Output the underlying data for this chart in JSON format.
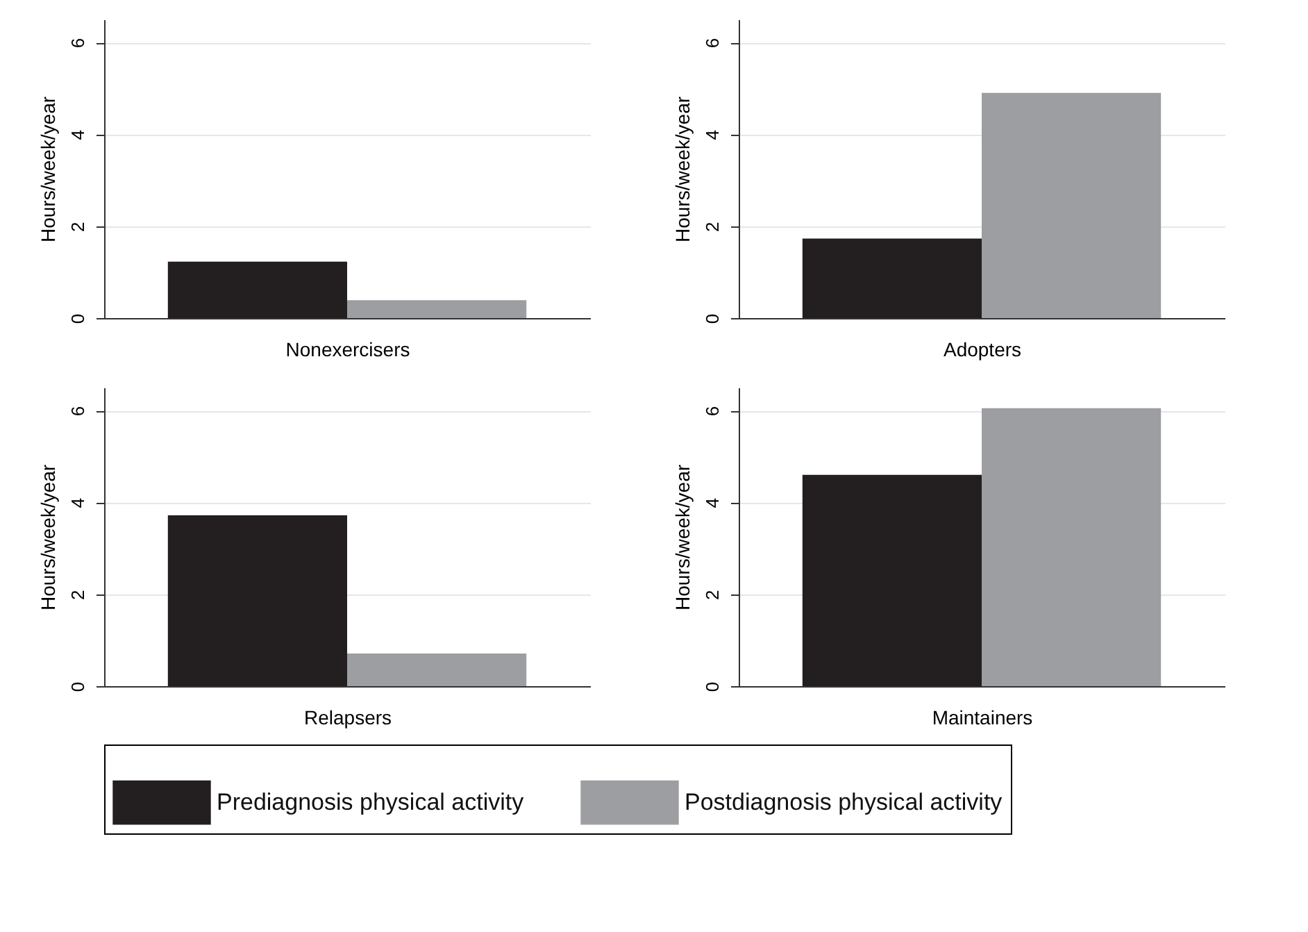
{
  "chart_data": [
    {
      "type": "bar",
      "xlabel": "Nonexercisers",
      "ylabel": "Hours/week/year",
      "categories": [
        null
      ],
      "ylim": [
        0,
        6.5
      ],
      "yticks": [
        0,
        2,
        4,
        6
      ],
      "grid": "y",
      "legend": "bottom",
      "series": [
        {
          "name": "Prediagnosis physical activity",
          "color": "#231f20",
          "values": [
            1.23
          ]
        },
        {
          "name": "Postdiagnosis physical activity",
          "color": "#9d9ea1",
          "values": [
            0.39
          ]
        }
      ]
    },
    {
      "type": "bar",
      "xlabel": "Adopters",
      "ylabel": "Hours/week/year",
      "categories": [
        null
      ],
      "ylim": [
        0,
        6.5
      ],
      "yticks": [
        0,
        2,
        4,
        6
      ],
      "grid": "y",
      "legend": "bottom",
      "series": [
        {
          "name": "Prediagnosis physical activity",
          "color": "#231f20",
          "values": [
            1.73
          ]
        },
        {
          "name": "Postdiagnosis physical activity",
          "color": "#9d9ea1",
          "values": [
            4.9
          ]
        }
      ]
    },
    {
      "type": "bar",
      "xlabel": "Relapsers",
      "ylabel": "Hours/week/year",
      "categories": [
        null
      ],
      "ylim": [
        0,
        6.5
      ],
      "yticks": [
        0,
        2,
        4,
        6
      ],
      "grid": "y",
      "legend": "bottom",
      "series": [
        {
          "name": "Prediagnosis physical activity",
          "color": "#231f20",
          "values": [
            3.72
          ]
        },
        {
          "name": "Postdiagnosis physical activity",
          "color": "#9d9ea1",
          "values": [
            0.71
          ]
        }
      ]
    },
    {
      "type": "bar",
      "xlabel": "Maintainers",
      "ylabel": "Hours/week/year",
      "categories": [
        null
      ],
      "ylim": [
        0,
        6.5
      ],
      "yticks": [
        0,
        2,
        4,
        6
      ],
      "grid": "y",
      "legend": "bottom",
      "series": [
        {
          "name": "Prediagnosis physical activity",
          "color": "#231f20",
          "values": [
            4.6
          ]
        },
        {
          "name": "Postdiagnosis physical activity",
          "color": "#9d9ea1",
          "values": [
            6.05
          ]
        }
      ]
    }
  ]
}
